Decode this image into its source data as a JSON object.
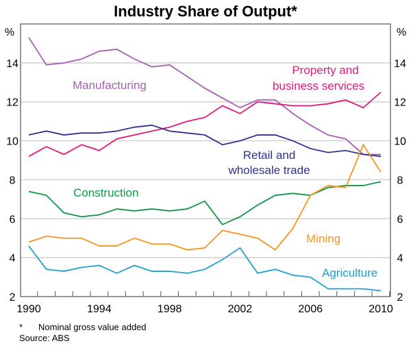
{
  "chart_data": {
    "type": "line",
    "title": "Industry Share of Output*",
    "ylabel_left": "%",
    "ylabel_right": "%",
    "ylim": [
      2,
      16
    ],
    "yticks": [
      2,
      4,
      6,
      8,
      10,
      12,
      14
    ],
    "xlim": [
      1990,
      2010
    ],
    "xtick_labels": [
      "1990",
      "1994",
      "1998",
      "2002",
      "2006",
      "2010"
    ],
    "grid": true,
    "x": [
      1990,
      1991,
      1992,
      1993,
      1994,
      1995,
      1996,
      1997,
      1998,
      1999,
      2000,
      2001,
      2002,
      2003,
      2004,
      2005,
      2006,
      2007,
      2008,
      2009,
      2010
    ],
    "series": [
      {
        "name": "Manufacturing",
        "color": "#a65fb2",
        "values": [
          15.3,
          13.9,
          14.0,
          14.2,
          14.6,
          14.7,
          14.2,
          13.8,
          13.9,
          13.3,
          12.7,
          12.2,
          11.7,
          12.1,
          12.1,
          11.4,
          10.8,
          10.3,
          10.1,
          9.3,
          9.3
        ]
      },
      {
        "name": "Property and business services",
        "color": "#e2177d",
        "values": [
          9.2,
          9.7,
          9.3,
          9.8,
          9.5,
          10.1,
          10.3,
          10.5,
          10.7,
          11.0,
          11.2,
          11.8,
          11.4,
          12.0,
          11.9,
          11.8,
          11.8,
          11.9,
          12.1,
          11.7,
          12.5
        ]
      },
      {
        "name": "Retail and wholesale trade",
        "color": "#2e3192",
        "values": [
          10.3,
          10.5,
          10.3,
          10.4,
          10.4,
          10.5,
          10.7,
          10.8,
          10.5,
          10.4,
          10.3,
          9.8,
          10.0,
          10.3,
          10.3,
          10.0,
          9.6,
          9.4,
          9.5,
          9.3,
          9.2
        ]
      },
      {
        "name": "Construction",
        "color": "#0f9648",
        "values": [
          7.4,
          7.2,
          6.3,
          6.1,
          6.2,
          6.5,
          6.4,
          6.5,
          6.4,
          6.5,
          6.9,
          5.7,
          6.1,
          6.7,
          7.2,
          7.3,
          7.2,
          7.6,
          7.7,
          7.7,
          7.9
        ]
      },
      {
        "name": "Mining",
        "color": "#f7941d",
        "values": [
          4.8,
          5.1,
          5.0,
          5.0,
          4.6,
          4.6,
          5.0,
          4.7,
          4.7,
          4.4,
          4.5,
          5.4,
          5.2,
          5.0,
          4.4,
          5.5,
          7.2,
          7.7,
          7.6,
          9.8,
          8.4
        ]
      },
      {
        "name": "Agriculture",
        "color": "#1ba1cc",
        "values": [
          4.6,
          3.4,
          3.3,
          3.5,
          3.6,
          3.2,
          3.6,
          3.3,
          3.3,
          3.2,
          3.4,
          3.9,
          4.5,
          3.2,
          3.4,
          3.1,
          3.0,
          2.4,
          2.4,
          2.4,
          2.3
        ]
      }
    ],
    "labels": {
      "manufacturing": "Manufacturing",
      "property_1": "Property and",
      "property_2": "business services",
      "retail_1": "Retail and",
      "retail_2": "wholesale trade",
      "construction": "Construction",
      "mining": "Mining",
      "agriculture": "Agriculture"
    },
    "footnote": "Nominal gross value added",
    "footnote_marker": "*",
    "source": "Source: ABS"
  }
}
